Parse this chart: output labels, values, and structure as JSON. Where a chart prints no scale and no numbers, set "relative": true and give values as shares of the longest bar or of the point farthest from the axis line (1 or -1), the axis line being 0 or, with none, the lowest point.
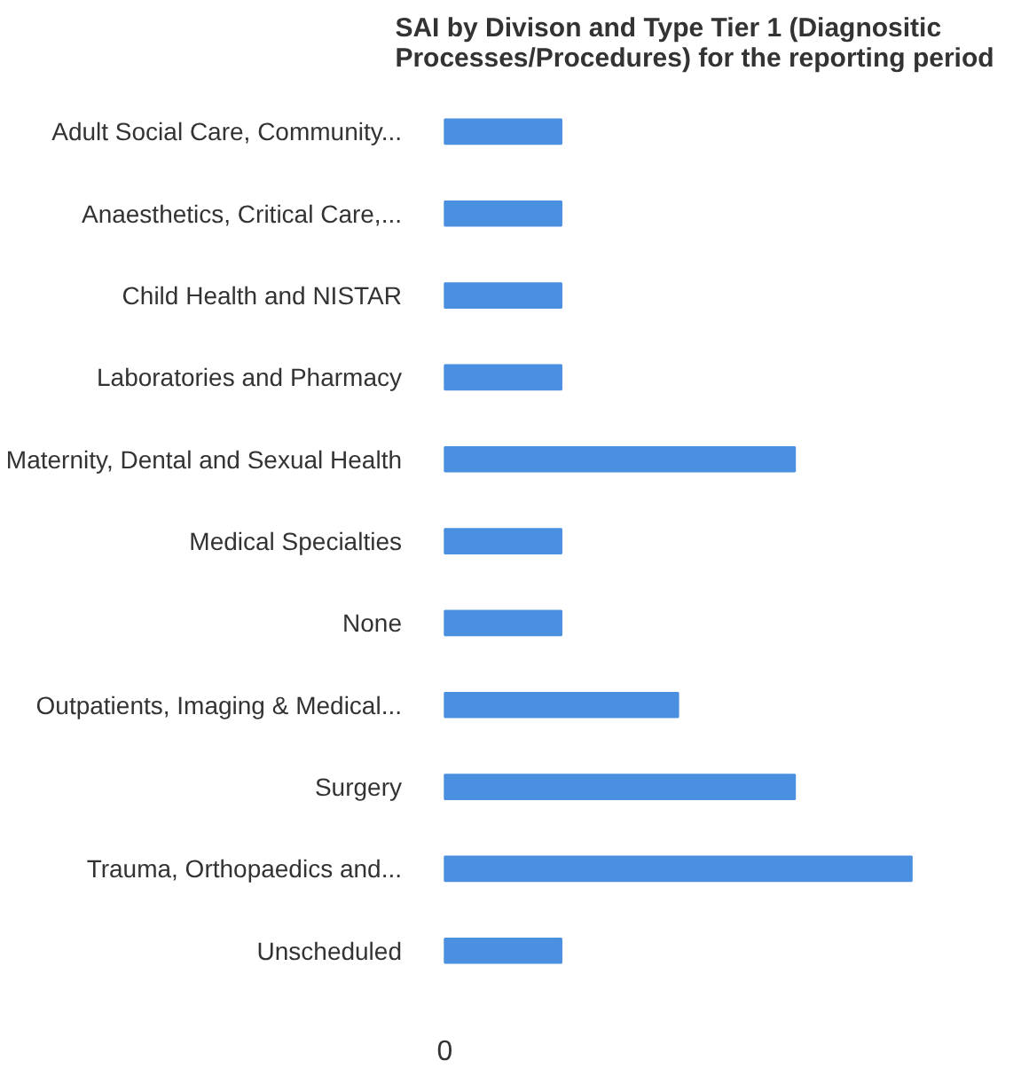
{
  "chart_data": {
    "type": "bar",
    "orientation": "horizontal",
    "relative": true,
    "title": "SAI by Divison and Type Tier 1 (Diagnositic\nProcesses/Procedures) for the reporting period",
    "categories": [
      "Adult Social Care, Community...",
      "Anaesthetics, Critical Care,...",
      "Child Health and NISTAR",
      "Laboratories and Pharmacy",
      "Maternity, Dental and Sexual Health",
      "Medical Specialties",
      "None",
      "Outpatients, Imaging & Medical...",
      "Surgery",
      "Trauma, Orthopaedics and...",
      "Unscheduled"
    ],
    "values": [
      0.25,
      0.25,
      0.25,
      0.25,
      0.75,
      0.25,
      0.25,
      0.5,
      0.75,
      1,
      0.25
    ],
    "color": "#4a8fe0",
    "annotations": [
      "0"
    ]
  }
}
